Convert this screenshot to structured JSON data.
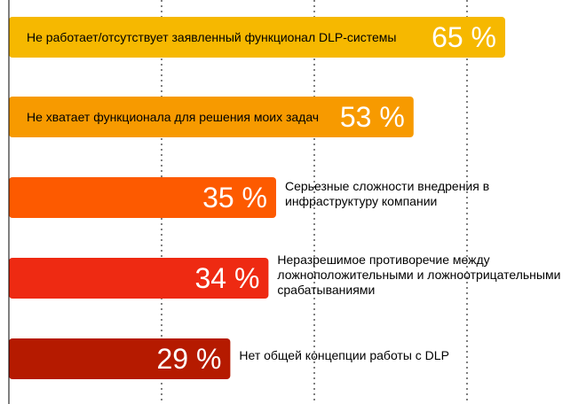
{
  "chart_data": {
    "type": "bar",
    "orientation": "horizontal",
    "unit": "%",
    "xlim": [
      0,
      100
    ],
    "grid": true,
    "gridlines_at": [
      20,
      40,
      60
    ],
    "categories": [
      "Не работает/отсутствует заявленный функционал DLP-системы",
      "Не хватает функционала для решения моих задач",
      "Серьезные сложности внедрения в инфраструктуру компании",
      "Неразрешимое противоречие между ложноположительными и ложноотрицательными срабатываниями",
      "Нет общей концепции работы с DLP"
    ],
    "values": [
      65,
      53,
      35,
      34,
      29
    ],
    "value_labels": [
      "65 %",
      "53 %",
      "35 %",
      "34 %",
      "29 %"
    ],
    "label_position": [
      "inside",
      "inside",
      "outside",
      "outside",
      "outside"
    ],
    "colors": [
      "#F6B800",
      "#F79A00",
      "#FD5A00",
      "#EE2A12",
      "#B51A00"
    ]
  }
}
